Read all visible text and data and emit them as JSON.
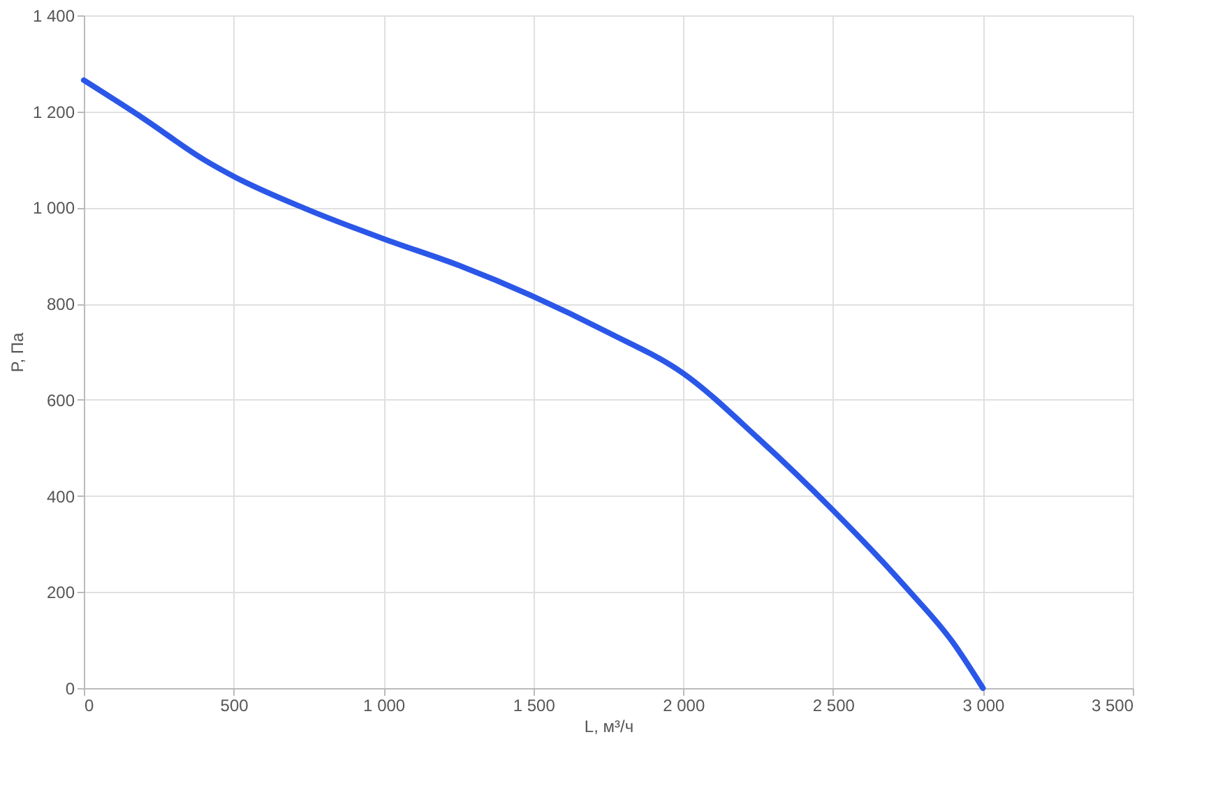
{
  "chart_data": {
    "type": "line",
    "xlabel": "L, м³/ч",
    "ylabel": "P, Па",
    "x": [
      0,
      200,
      400,
      500,
      750,
      1000,
      1250,
      1500,
      1750,
      2000,
      2250,
      2500,
      2750,
      2900,
      3000
    ],
    "series": [
      {
        "color": "#2b57e8",
        "values": [
          1265,
          1185,
          1100,
          1065,
          995,
          935,
          880,
          815,
          740,
          655,
          520,
          370,
          205,
          95,
          0
        ]
      }
    ],
    "xlim": [
      0,
      3500
    ],
    "ylim": [
      0,
      1400
    ],
    "xticks": [
      0,
      500,
      {
        "value": 1000,
        "label": "1 000"
      },
      {
        "value": 1500,
        "label": "1 500"
      },
      {
        "value": 2000,
        "label": "2 000"
      },
      {
        "value": 2500,
        "label": "2 500"
      },
      {
        "value": 3000,
        "label": "3 000"
      },
      {
        "value": 3500,
        "label": "3 500"
      }
    ],
    "yticks": [
      0,
      200,
      400,
      600,
      800,
      {
        "value": 1000,
        "label": "1 000"
      },
      {
        "value": 1200,
        "label": "1 200"
      },
      {
        "value": 1400,
        "label": "1 400"
      }
    ],
    "grid": true,
    "marker": "none",
    "line_style": "solid"
  }
}
